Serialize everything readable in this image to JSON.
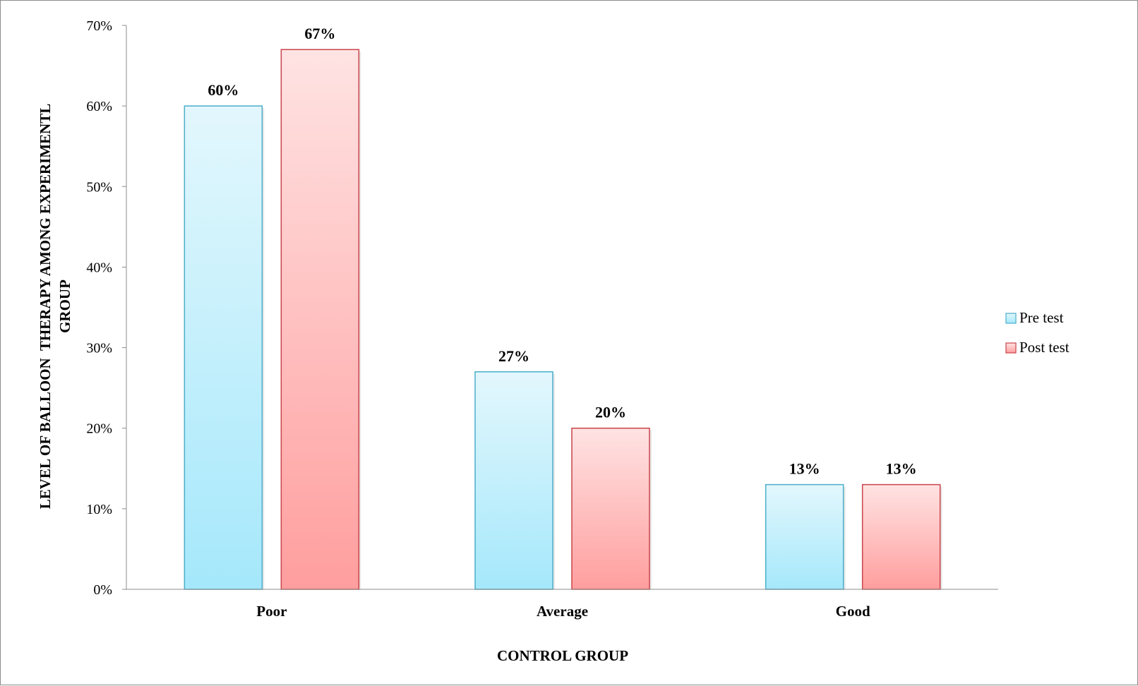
{
  "chart_data": {
    "type": "bar",
    "categories": [
      "Poor",
      "Average",
      "Good"
    ],
    "series": [
      {
        "name": "Pre test",
        "values": [
          60,
          27,
          13
        ],
        "labels": [
          "60%",
          "27%",
          "13%"
        ],
        "color_top": "#e3f7fd",
        "color_bottom": "#a5e8fb",
        "stroke": "#4aaec8"
      },
      {
        "name": "Post test",
        "values": [
          67,
          20,
          13
        ],
        "labels": [
          "67%",
          "20%",
          "13%"
        ],
        "color_top": "#ffe3e3",
        "color_bottom": "#ff9e9e",
        "stroke": "#c8444a"
      }
    ],
    "xlabel": "CONTROL GROUP",
    "ylabel_lines": [
      "LEVEL OF BALLOON  THERAPY AMONG EXPERIMENTL",
      "GROUP"
    ],
    "ylim": [
      0,
      70
    ],
    "yticks": [
      0,
      10,
      20,
      30,
      40,
      50,
      60,
      70
    ],
    "ytick_labels": [
      "0%",
      "10%",
      "20%",
      "30%",
      "40%",
      "50%",
      "60%",
      "70%"
    ],
    "grid": false,
    "legend_position": "right"
  }
}
